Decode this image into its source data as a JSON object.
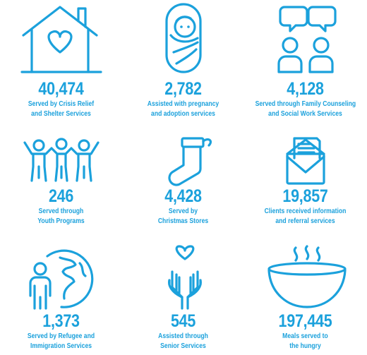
{
  "colors": {
    "accent": "#1ba1dc",
    "background": "#ffffff"
  },
  "stats": [
    {
      "icon": "house-heart-icon",
      "number": "40,474",
      "caption": [
        "Served by Crisis Relief",
        "and Shelter Services"
      ]
    },
    {
      "icon": "swaddled-baby-icon",
      "number": "2,782",
      "caption": [
        "Assisted with pregnancy",
        "and adoption services"
      ]
    },
    {
      "icon": "counseling-people-icon",
      "number": "4,128",
      "caption": [
        "Served through Family Counseling",
        "and Social Work Services"
      ]
    },
    {
      "icon": "youth-group-icon",
      "number": "246",
      "caption": [
        "Served through",
        "Youth Programs"
      ]
    },
    {
      "icon": "christmas-stocking-icon",
      "number": "4,428",
      "caption": [
        "Served by",
        "Christmas Stores"
      ]
    },
    {
      "icon": "envelope-letter-icon",
      "number": "19,857",
      "caption": [
        "Clients received information",
        "and referral services"
      ]
    },
    {
      "icon": "globe-person-icon",
      "number": "1,373",
      "caption": [
        "Served by Refugee and",
        "Immigration Services"
      ]
    },
    {
      "icon": "hands-heart-icon",
      "number": "545",
      "caption": [
        "Assisted through",
        "Senior Services"
      ]
    },
    {
      "icon": "soup-bowl-icon",
      "number": "197,445",
      "caption": [
        "Meals served to",
        "the hungry"
      ]
    }
  ]
}
